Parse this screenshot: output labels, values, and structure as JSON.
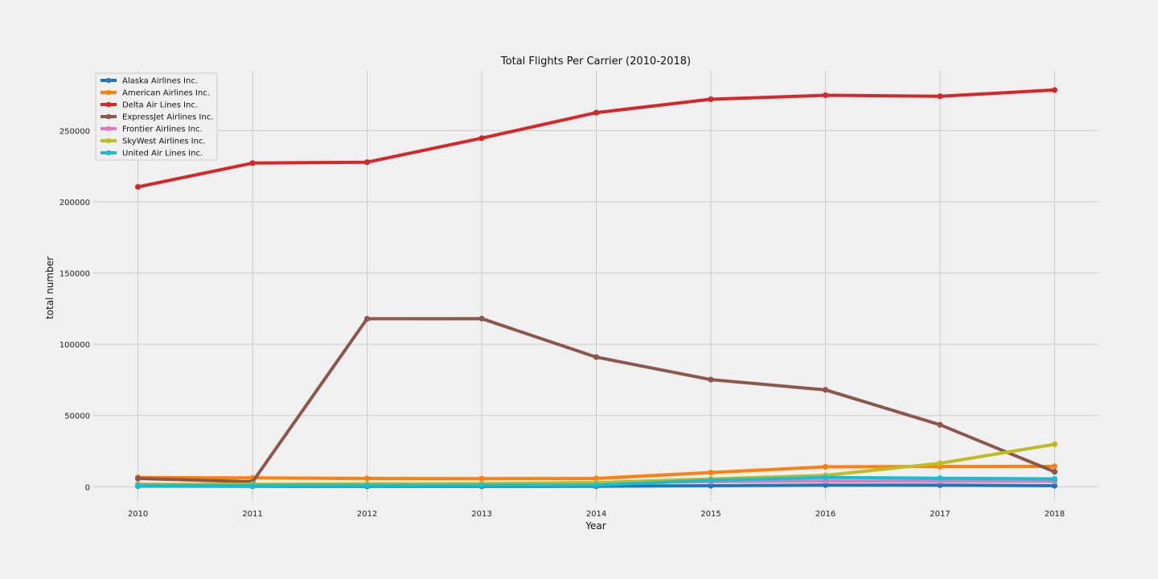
{
  "chart_data": {
    "type": "line",
    "title": "Total Flights Per Carrier (2010-2018)",
    "xlabel": "Year",
    "ylabel": "total number",
    "x": [
      2010,
      2011,
      2012,
      2013,
      2014,
      2015,
      2016,
      2017,
      2018
    ],
    "x_tick_labels": [
      "2010",
      "2011",
      "2012",
      "2013",
      "2014",
      "2015",
      "2016",
      "2017",
      "2018"
    ],
    "y_ticks": [
      0,
      50000,
      100000,
      150000,
      200000,
      250000
    ],
    "y_tick_labels": [
      "0",
      "50000",
      "100000",
      "150000",
      "200000",
      "250000"
    ],
    "xlim": [
      2009.61,
      2018.39
    ],
    "ylim": [
      -10000,
      292000
    ],
    "grid": true,
    "legend_position": "top-left",
    "series": [
      {
        "name": "Alaska Airlines Inc.",
        "color": "#1f77b4",
        "values": [
          500,
          400,
          300,
          300,
          400,
          700,
          1200,
          1100,
          700
        ]
      },
      {
        "name": "American Airlines Inc.",
        "color": "#ff7f0e",
        "values": [
          6500,
          6200,
          5800,
          5700,
          5800,
          10000,
          14000,
          14200,
          14300
        ]
      },
      {
        "name": "Delta Air Lines Inc.",
        "color": "#d62728",
        "values": [
          210500,
          227200,
          227800,
          244700,
          262600,
          272000,
          274800,
          274100,
          278500
        ]
      },
      {
        "name": "ExpressJet Airlines Inc.",
        "color": "#8c564b",
        "values": [
          5800,
          3500,
          117900,
          118000,
          91000,
          75200,
          68000,
          43500,
          10500
        ]
      },
      {
        "name": "Frontier Airlines Inc.",
        "color": "#e377c2",
        "values": [
          1800,
          1600,
          1900,
          2100,
          2600,
          3600,
          4000,
          3900,
          3800
        ]
      },
      {
        "name": "SkyWest Airlines Inc.",
        "color": "#bcbd22",
        "values": [
          1500,
          1800,
          2000,
          2200,
          3000,
          5500,
          8000,
          16500,
          29800
        ]
      },
      {
        "name": "United Air Lines Inc.",
        "color": "#17becf",
        "values": [
          800,
          800,
          900,
          1000,
          1200,
          4500,
          6500,
          6000,
          5500
        ]
      }
    ]
  }
}
